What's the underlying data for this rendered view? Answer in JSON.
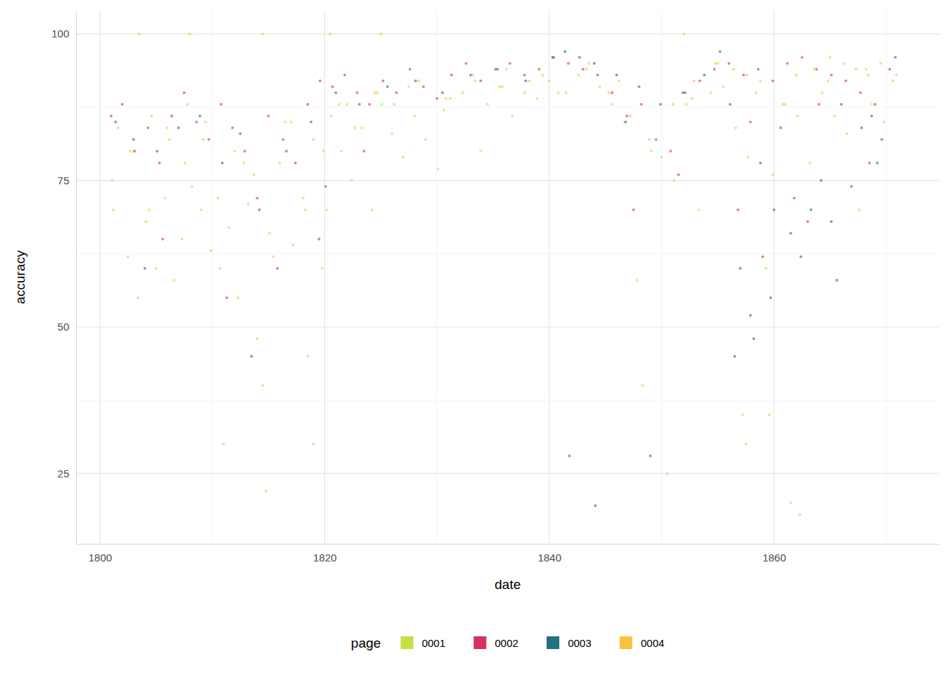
{
  "chart_data": {
    "type": "scatter",
    "x_label": "date",
    "y_label": "accuracy",
    "legend_title": "page",
    "legend": "bottom",
    "grid": true,
    "xlim": [
      1797.9,
      1874.7
    ],
    "ylim": [
      13,
      104
    ],
    "xticks": [
      1800,
      1820,
      1840,
      1860
    ],
    "yticks": [
      25,
      50,
      75,
      100
    ],
    "series": [
      {
        "name": "0001",
        "color": "#c5df45",
        "x": [
          1801.2,
          1802.5,
          1803.4,
          1804.1,
          1805.0,
          1805.8,
          1806.6,
          1807.3,
          1808.2,
          1809.0,
          1809.9,
          1810.7,
          1811.5,
          1812.3,
          1813.2,
          1814.0,
          1815.1,
          1816.0,
          1817.2,
          1818.1,
          1819.0,
          1819.8,
          1820.6,
          1821.5,
          1822.4,
          1823.3,
          1824.2,
          1825.1,
          1826.0,
          1827.0,
          1828.0,
          1829.0,
          1830.1,
          1831.2,
          1832.3,
          1833.4,
          1834.5,
          1835.6,
          1836.7,
          1837.8,
          1838.9,
          1840.0,
          1841.5,
          1842.6,
          1844.5,
          1845.6,
          1846.7,
          1847.8,
          1848.9,
          1850.0,
          1851.1,
          1852.2,
          1853.3,
          1854.4,
          1855.5,
          1856.6,
          1857.7,
          1858.8,
          1859.9,
          1861.0,
          1862.1,
          1863.2,
          1864.3,
          1865.4,
          1866.5,
          1867.6,
          1868.7,
          1869.8,
          1870.9,
          1801.6,
          1803.0,
          1804.6,
          1806.2,
          1807.8,
          1809.4,
          1811.0,
          1812.8,
          1814.5,
          1816.5,
          1818.5,
          1820.2,
          1822.0,
          1824.7,
          1827.5,
          1830.6,
          1833.9,
          1836.2,
          1839.4,
          1843.5,
          1846.2,
          1848.3,
          1850.5,
          1852.7,
          1855.0,
          1857.2,
          1859.3,
          1861.5,
          1864.8,
          1868.2
        ],
        "values": [
          70,
          62,
          55,
          68,
          60,
          72,
          58,
          65,
          74,
          70,
          63,
          60,
          67,
          55,
          71,
          48,
          66,
          78,
          64,
          72,
          82,
          60,
          86,
          80,
          75,
          84,
          70,
          88,
          83,
          79,
          86,
          82,
          77,
          89,
          90,
          92,
          88,
          91,
          86,
          90,
          89,
          92,
          90,
          93,
          91,
          88,
          85,
          58,
          82,
          79,
          75,
          88,
          70,
          90,
          91,
          84,
          79,
          92,
          76,
          88,
          86,
          78,
          90,
          86,
          83,
          70,
          88,
          85,
          93,
          84,
          80,
          86,
          82,
          88,
          85,
          30,
          78,
          40,
          85,
          45,
          70,
          88,
          90,
          91,
          87,
          80,
          94,
          93,
          95,
          92,
          40,
          25,
          89,
          95,
          35,
          60,
          20,
          92,
          94
        ]
      },
      {
        "name": "0002",
        "color": "#d6325f",
        "x": [
          1801.0,
          1802.0,
          1803.1,
          1804.3,
          1805.3,
          1806.4,
          1807.5,
          1808.6,
          1809.7,
          1810.8,
          1811.8,
          1812.9,
          1814.0,
          1815.0,
          1816.3,
          1817.4,
          1818.5,
          1819.6,
          1820.7,
          1821.8,
          1822.9,
          1824.0,
          1825.2,
          1826.4,
          1827.6,
          1828.8,
          1830.0,
          1831.3,
          1832.6,
          1833.9,
          1835.2,
          1836.5,
          1837.8,
          1839.1,
          1840.4,
          1841.7,
          1843.0,
          1844.3,
          1845.6,
          1846.9,
          1848.2,
          1849.5,
          1850.8,
          1852.1,
          1853.4,
          1854.7,
          1856.0,
          1857.3,
          1858.6,
          1859.9,
          1861.2,
          1862.5,
          1863.8,
          1865.1,
          1866.4,
          1867.7,
          1869.0,
          1870.3,
          1805.6,
          1811.3,
          1815.8,
          1820.1,
          1823.5,
          1847.5,
          1851.5,
          1856.8,
          1859.0,
          1861.8,
          1863.0,
          1868.5,
          1857.9,
          1864.0
        ],
        "values": [
          86,
          88,
          80,
          84,
          78,
          86,
          90,
          85,
          82,
          88,
          84,
          80,
          72,
          86,
          82,
          78,
          88,
          92,
          91,
          93,
          90,
          88,
          92,
          90,
          94,
          91,
          89,
          93,
          95,
          92,
          94,
          95,
          93,
          94,
          96,
          95,
          94,
          93,
          90,
          86,
          88,
          82,
          80,
          90,
          92,
          94,
          95,
          93,
          94,
          92,
          95,
          96,
          94,
          93,
          92,
          90,
          88,
          94,
          65,
          55,
          60,
          74,
          80,
          70,
          76,
          70,
          62,
          72,
          68,
          78,
          85,
          88
        ]
      },
      {
        "name": "0003",
        "color": "#22717d",
        "x": [
          1801.4,
          1803.0,
          1805.1,
          1807.0,
          1808.9,
          1810.9,
          1812.5,
          1814.2,
          1816.6,
          1818.8,
          1821.0,
          1823.1,
          1825.6,
          1828.1,
          1830.5,
          1833.0,
          1835.4,
          1837.9,
          1840.3,
          1841.4,
          1842.7,
          1844.0,
          1846.0,
          1848.0,
          1849.9,
          1851.9,
          1853.8,
          1855.2,
          1856.1,
          1857.0,
          1857.9,
          1858.8,
          1859.7,
          1860.6,
          1861.5,
          1862.4,
          1863.3,
          1864.2,
          1865.1,
          1866.0,
          1866.9,
          1867.8,
          1868.7,
          1869.6,
          1870.8,
          1804.0,
          1813.5,
          1819.5,
          1846.8,
          1849.0,
          1856.5,
          1858.2,
          1860.0,
          1844.1,
          1841.8,
          1865.6,
          1869.2
        ],
        "values": [
          85,
          82,
          80,
          84,
          86,
          78,
          83,
          70,
          80,
          85,
          90,
          88,
          91,
          92,
          90,
          93,
          94,
          92,
          96,
          97,
          96,
          95,
          93,
          91,
          88,
          90,
          93,
          97,
          88,
          60,
          52,
          78,
          55,
          84,
          66,
          62,
          70,
          75,
          68,
          88,
          74,
          84,
          86,
          82,
          96,
          60,
          45,
          65,
          85,
          28,
          45,
          48,
          70,
          19.5,
          28,
          58,
          78
        ]
      },
      {
        "name": "0004",
        "color": "#fbc13a",
        "x": [
          1801.1,
          1802.7,
          1804.4,
          1806.0,
          1807.6,
          1809.2,
          1810.5,
          1812.0,
          1813.7,
          1815.4,
          1817.0,
          1818.3,
          1819.9,
          1821.3,
          1822.7,
          1824.5,
          1826.2,
          1828.4,
          1830.8,
          1833.2,
          1835.8,
          1838.2,
          1840.8,
          1843.3,
          1845.3,
          1847.2,
          1849.1,
          1851.0,
          1852.9,
          1854.8,
          1856.4,
          1857.6,
          1858.4,
          1859.6,
          1860.8,
          1862.0,
          1863.6,
          1865.0,
          1866.2,
          1867.3,
          1868.4,
          1869.5,
          1870.6,
          1803.5,
          1808.0,
          1814.5,
          1820.5,
          1825.0,
          1852.0,
          1819.0,
          1857.5,
          1862.3,
          1814.8
        ],
        "values": [
          75,
          80,
          70,
          84,
          78,
          82,
          72,
          80,
          76,
          62,
          85,
          70,
          80,
          88,
          84,
          90,
          88,
          92,
          89,
          93,
          91,
          92,
          90,
          94,
          90,
          86,
          80,
          88,
          92,
          95,
          94,
          93,
          90,
          35,
          88,
          93,
          94,
          96,
          95,
          94,
          93,
          95,
          92,
          100,
          100,
          100,
          100,
          100,
          100,
          30,
          30,
          18,
          22
        ]
      }
    ]
  }
}
